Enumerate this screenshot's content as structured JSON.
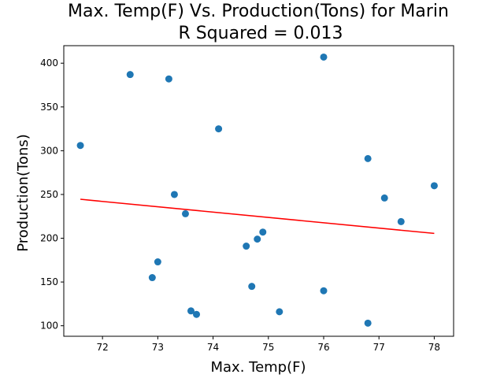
{
  "chart_data": {
    "type": "scatter",
    "title": "Max. Temp(F) Vs. Production(Tons) for Marin",
    "subtitle": "R Squared =  0.013",
    "xlabel": "Max. Temp(F)",
    "ylabel": "Production(Tons)",
    "xlim": [
      71.3,
      78.35
    ],
    "ylim": [
      88,
      420
    ],
    "xticks": [
      72,
      73,
      74,
      75,
      76,
      77,
      78
    ],
    "yticks": [
      100,
      150,
      200,
      250,
      300,
      350,
      400
    ],
    "grid": false,
    "points": [
      {
        "x": 71.6,
        "y": 306
      },
      {
        "x": 72.5,
        "y": 387
      },
      {
        "x": 72.9,
        "y": 155
      },
      {
        "x": 73.0,
        "y": 173
      },
      {
        "x": 73.2,
        "y": 382
      },
      {
        "x": 73.3,
        "y": 250
      },
      {
        "x": 73.5,
        "y": 228
      },
      {
        "x": 73.6,
        "y": 117
      },
      {
        "x": 73.7,
        "y": 113
      },
      {
        "x": 74.1,
        "y": 325
      },
      {
        "x": 74.6,
        "y": 191
      },
      {
        "x": 74.7,
        "y": 145
      },
      {
        "x": 74.8,
        "y": 199
      },
      {
        "x": 74.9,
        "y": 207
      },
      {
        "x": 75.2,
        "y": 116
      },
      {
        "x": 76.0,
        "y": 407
      },
      {
        "x": 76.0,
        "y": 140
      },
      {
        "x": 76.8,
        "y": 291
      },
      {
        "x": 76.8,
        "y": 103
      },
      {
        "x": 77.1,
        "y": 246
      },
      {
        "x": 77.4,
        "y": 219
      },
      {
        "x": 78.0,
        "y": 260
      }
    ],
    "regression": {
      "x": [
        71.6,
        78.0
      ],
      "y": [
        244.5,
        205.5
      ]
    },
    "colors": {
      "points": "#1f77b4",
      "regression": "#ff0000"
    }
  }
}
